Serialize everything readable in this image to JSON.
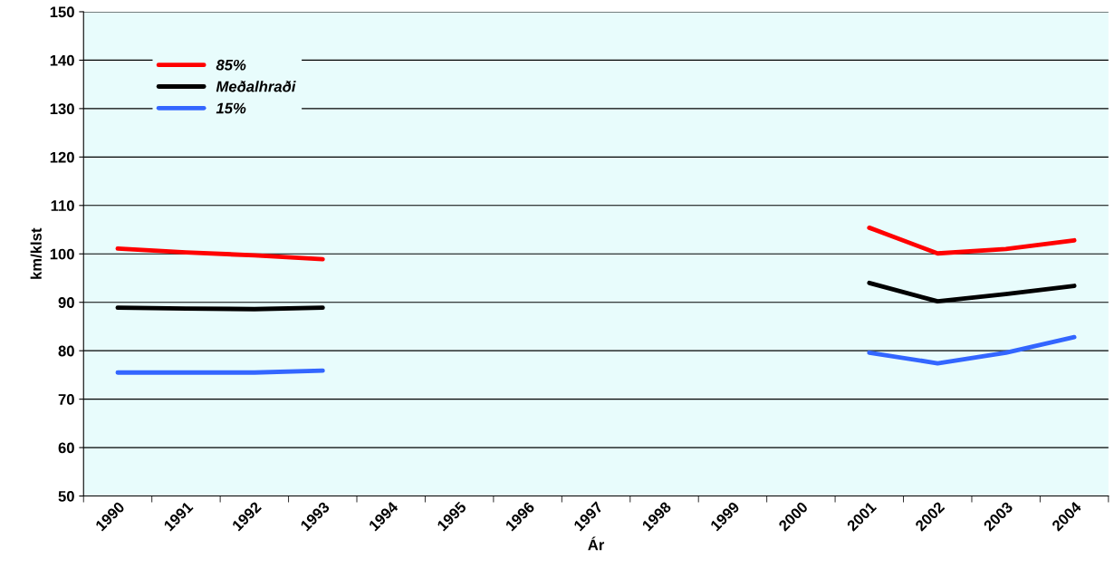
{
  "chart_data": {
    "type": "line",
    "xlabel": "Ár",
    "ylabel": "km/klst",
    "categories": [
      "1990",
      "1991",
      "1992",
      "1993",
      "1994",
      "1995",
      "1996",
      "1997",
      "1998",
      "1999",
      "2000",
      "2001",
      "2002",
      "2003",
      "2004"
    ],
    "series": [
      {
        "name": "85%",
        "color": "#ff0000",
        "values": [
          101.1,
          100.3,
          99.7,
          98.9,
          null,
          null,
          null,
          null,
          null,
          null,
          null,
          105.4,
          100.1,
          101.0,
          102.8
        ]
      },
      {
        "name": "Meðalhraði",
        "color": "#000000",
        "values": [
          88.9,
          88.7,
          88.6,
          88.9,
          null,
          null,
          null,
          null,
          null,
          null,
          null,
          94.0,
          90.2,
          91.7,
          93.4
        ]
      },
      {
        "name": "15%",
        "color": "#3366ff",
        "values": [
          75.5,
          75.5,
          75.5,
          75.9,
          null,
          null,
          null,
          null,
          null,
          null,
          null,
          79.6,
          77.4,
          79.6,
          82.8
        ]
      }
    ],
    "ylim": [
      50,
      150
    ],
    "yticks": [
      50,
      60,
      70,
      80,
      90,
      100,
      110,
      120,
      130,
      140,
      150
    ],
    "grid": "y",
    "legend": "top left",
    "marker": "none",
    "line_style": "solid"
  }
}
